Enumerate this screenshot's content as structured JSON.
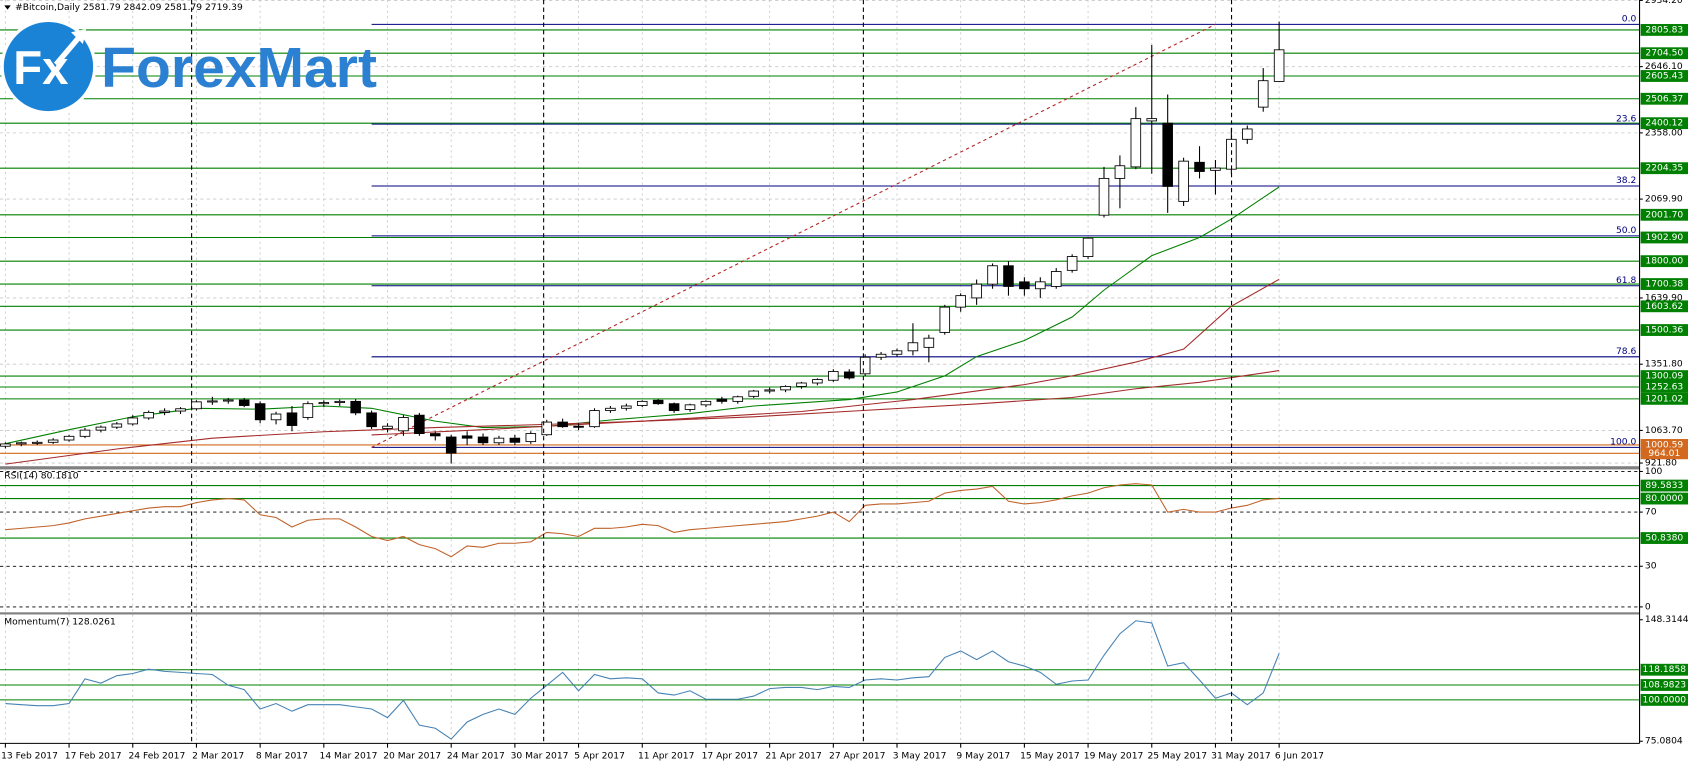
{
  "logo": {
    "icon": "Fx",
    "text": "ForexMart"
  },
  "chart_data": [
    {
      "type": "candlestick",
      "title": "#Bitcoin,Daily  2581.79 2842.09 2581.79 2719.39",
      "categories": [
        "13 Feb 2017",
        null,
        null,
        null,
        "17 Feb 2017",
        null,
        null,
        null,
        "24 Feb 2017",
        null,
        null,
        null,
        "2 Mar 2017",
        null,
        null,
        null,
        "8 Mar 2017",
        null,
        null,
        null,
        "14 Mar 2017",
        null,
        null,
        null,
        "20 Mar 2017",
        null,
        null,
        null,
        "24 Mar 2017",
        null,
        null,
        null,
        "30 Mar 2017",
        null,
        null,
        null,
        "5 Apr 2017",
        null,
        null,
        null,
        "11 Apr 2017",
        null,
        null,
        null,
        "17 Apr 2017",
        null,
        null,
        null,
        "21 Apr 2017",
        null,
        null,
        null,
        "27 Apr 2017",
        null,
        null,
        null,
        "3 May 2017",
        null,
        null,
        null,
        "9 May 2017",
        null,
        null,
        null,
        "15 May 2017",
        null,
        null,
        null,
        "19 May 2017",
        null,
        null,
        null,
        "25 May 2017",
        null,
        null,
        null,
        "31 May 2017",
        null,
        null,
        null,
        "6 Jun 2017"
      ],
      "open": [
        995,
        1005,
        1010,
        1012,
        1022,
        1038,
        1065,
        1078,
        1092,
        1118,
        1142,
        1148,
        1158,
        1188,
        1192,
        1196,
        1180,
        1110,
        1140,
        1120,
        1180,
        1185,
        1190,
        1140,
        1072,
        1062,
        1130,
        1050,
        1035,
        1040,
        1035,
        1010,
        1030,
        1015,
        1045,
        1100,
        1082,
        1080,
        1150,
        1160,
        1172,
        1195,
        1180,
        1155,
        1175,
        1200,
        1190,
        1212,
        1235,
        1240,
        1255,
        1270,
        1282,
        1318,
        1310,
        1382,
        1395,
        1410,
        1425,
        1490,
        1600,
        1640,
        1700,
        1780,
        1710,
        1680,
        1690,
        1760,
        1820,
        2000,
        2160,
        2210,
        2410,
        2400,
        2060,
        2230,
        2195,
        2200,
        2330,
        2470,
        2581.79
      ],
      "high": [
        1012,
        1015,
        1020,
        1030,
        1045,
        1075,
        1085,
        1100,
        1130,
        1150,
        1160,
        1165,
        1195,
        1210,
        1205,
        1205,
        1190,
        1145,
        1170,
        1190,
        1195,
        1198,
        1200,
        1150,
        1095,
        1130,
        1140,
        1060,
        1045,
        1060,
        1050,
        1040,
        1045,
        1060,
        1110,
        1115,
        1095,
        1160,
        1170,
        1180,
        1195,
        1200,
        1185,
        1180,
        1195,
        1210,
        1215,
        1240,
        1250,
        1260,
        1275,
        1290,
        1330,
        1330,
        1395,
        1405,
        1420,
        1530,
        1480,
        1610,
        1660,
        1720,
        1790,
        1800,
        1730,
        1730,
        1770,
        1830,
        1905,
        2210,
        2260,
        2470,
        2740,
        2525,
        2250,
        2300,
        2240,
        2380,
        2390,
        2640,
        2842.09
      ],
      "low": [
        985,
        995,
        1000,
        1005,
        1015,
        1030,
        1055,
        1070,
        1085,
        1110,
        1130,
        1135,
        1150,
        1175,
        1180,
        1165,
        1095,
        1090,
        1060,
        1110,
        1165,
        1170,
        1130,
        1070,
        1055,
        1040,
        1040,
        1020,
        920,
        1000,
        1000,
        1000,
        1000,
        1005,
        1040,
        1075,
        1065,
        1075,
        1140,
        1150,
        1165,
        1175,
        1140,
        1145,
        1165,
        1180,
        1180,
        1205,
        1225,
        1230,
        1245,
        1260,
        1275,
        1285,
        1300,
        1370,
        1385,
        1390,
        1360,
        1480,
        1580,
        1610,
        1680,
        1650,
        1650,
        1640,
        1680,
        1750,
        1810,
        1990,
        2030,
        2200,
        2180,
        2010,
        2040,
        2160,
        2090,
        2180,
        2310,
        2450,
        2581.79
      ],
      "close": [
        1005,
        1010,
        1012,
        1022,
        1038,
        1065,
        1078,
        1092,
        1118,
        1142,
        1148,
        1158,
        1188,
        1192,
        1196,
        1172,
        1110,
        1135,
        1085,
        1180,
        1185,
        1190,
        1140,
        1080,
        1082,
        1120,
        1050,
        1040,
        965,
        1030,
        1010,
        1030,
        1012,
        1050,
        1100,
        1080,
        1078,
        1150,
        1160,
        1170,
        1190,
        1180,
        1150,
        1175,
        1190,
        1190,
        1210,
        1235,
        1240,
        1255,
        1270,
        1285,
        1320,
        1292,
        1382,
        1395,
        1410,
        1445,
        1465,
        1600,
        1650,
        1700,
        1780,
        1690,
        1680,
        1710,
        1755,
        1820,
        1900,
        2160,
        2215,
        2420,
        2420,
        2125,
        2235,
        2190,
        2205,
        2330,
        2375,
        2585,
        2719.39
      ],
      "up_color": "#ffffff",
      "down_color": "#000000",
      "ylim": [
        908,
        2936
      ],
      "yticks": [
        {
          "value": 2934.2,
          "label": "2934.20"
        },
        {
          "value": 2646.1,
          "label": "2646.10"
        },
        {
          "value": 2358,
          "label": "2358.00"
        },
        {
          "value": 2069.9,
          "label": "2069.90"
        },
        {
          "value": 1639.9,
          "label": "1639.90"
        },
        {
          "value": 1351.8,
          "label": "1351.80"
        },
        {
          "value": 1063.7,
          "label": "1063.70"
        },
        {
          "value": 921.8,
          "label": "921.80"
        }
      ],
      "grid": true,
      "grid_color": "#c8c8c8",
      "overlays": [
        {
          "color": "#008000",
          "x": [
            0,
            4,
            8,
            12,
            16,
            20,
            23,
            27,
            30,
            34,
            38,
            43,
            47,
            53,
            56,
            59,
            61,
            64,
            67,
            69,
            72,
            75,
            77,
            80
          ],
          "values": [
            1006,
            1067,
            1123,
            1160,
            1156,
            1170,
            1160,
            1104,
            1076,
            1081,
            1109,
            1137,
            1170,
            1198,
            1231,
            1301,
            1385,
            1455,
            1557,
            1674,
            1824,
            1903,
            1983,
            2123
          ]
        },
        {
          "color": "#a52a2a",
          "x": [
            0,
            7,
            13,
            20,
            27,
            34,
            40,
            47,
            54,
            61,
            67,
            71,
            75,
            80
          ],
          "values": [
            917,
            983,
            1030,
            1058,
            1076,
            1090,
            1104,
            1123,
            1151,
            1179,
            1207,
            1245,
            1273,
            1324
          ]
        },
        {
          "color": "#a52a2a",
          "x": [
            23,
            30,
            40,
            50,
            57,
            64,
            67,
            71,
            74,
            77,
            80
          ],
          "values": [
            1044,
            1067,
            1104,
            1146,
            1198,
            1263,
            1301,
            1361,
            1417,
            1604,
            1721
          ]
        }
      ],
      "trendline": {
        "color": "#b22222",
        "x": [
          23,
          76
        ],
        "values": [
          990,
          2830
        ]
      },
      "fibonacci": {
        "color": "#000080",
        "x": [
          23,
          80
        ],
        "levels": [
          {
            "label": "0.0",
            "price": 2830
          },
          {
            "label": "23.6",
            "price": 2396
          },
          {
            "label": "38.2",
            "price": 2127
          },
          {
            "label": "50.0",
            "price": 1910
          },
          {
            "label": "61.8",
            "price": 1693
          },
          {
            "label": "78.6",
            "price": 1384
          },
          {
            "label": "100.0",
            "price": 990
          }
        ]
      },
      "levels": [
        {
          "value": 2805.83,
          "color": "#008000"
        },
        {
          "value": 2704.5,
          "label": "2704.50",
          "color": "#008000"
        },
        {
          "value": 2605.43,
          "color": "#008000"
        },
        {
          "value": 2506.37,
          "color": "#008000"
        },
        {
          "value": 2400.12,
          "color": "#008000"
        },
        {
          "value": 2204.35,
          "color": "#008000"
        },
        {
          "value": 2001.7,
          "label": "2001.70",
          "color": "#008000"
        },
        {
          "value": 1902.9,
          "label": "1902.90",
          "color": "#008000"
        },
        {
          "value": 1800,
          "label": "1800.00",
          "color": "#008000"
        },
        {
          "value": 1700.38,
          "color": "#008000"
        },
        {
          "value": 1603.62,
          "color": "#008000"
        },
        {
          "value": 1500.36,
          "color": "#008000"
        },
        {
          "value": 1300.09,
          "color": "#008000"
        },
        {
          "value": 1252.63,
          "color": "#008000"
        },
        {
          "value": 1201.02,
          "color": "#008000"
        },
        {
          "value": 1000.59,
          "color": "#d2691e"
        },
        {
          "value": 964.01,
          "color": "#d2691e"
        }
      ]
    },
    {
      "type": "line",
      "title": "RSI(14) 80.1810",
      "color": "#c0622a",
      "values": [
        57,
        58,
        59,
        60,
        62,
        65,
        67,
        69,
        71,
        73,
        74,
        74,
        77,
        79,
        80,
        79,
        68,
        66,
        59,
        64,
        65,
        65,
        59,
        52,
        49,
        52,
        46,
        43,
        37,
        45,
        44,
        47,
        47,
        48,
        55,
        54,
        52,
        58,
        58,
        59,
        61,
        60,
        55,
        57,
        58,
        59,
        60,
        61,
        62,
        63,
        65,
        67,
        70,
        63,
        75,
        76,
        76,
        77,
        78,
        84,
        86,
        87,
        89,
        78,
        76,
        77,
        79,
        82,
        84,
        88,
        90,
        91,
        90,
        70,
        72,
        70,
        70,
        73,
        75,
        79,
        80.181
      ],
      "ylim": [
        -4,
        101.5
      ],
      "yticks": [
        100,
        70,
        30,
        0
      ],
      "grid": true,
      "grid_color": "#000000",
      "levels": [
        {
          "value": 89.5833,
          "color": "#008000"
        },
        {
          "value": 80,
          "label": "80.0000",
          "color": "#008000"
        },
        {
          "value": 50.838,
          "label": "50.8380",
          "color": "#008000"
        }
      ]
    },
    {
      "type": "line",
      "title": "Momentum(7) 128.0261",
      "color": "#4682b4",
      "values": [
        97.8,
        97.1,
        96.5,
        96.5,
        97.8,
        112.7,
        110.1,
        114.6,
        115.9,
        118.5,
        117.2,
        116.6,
        115.9,
        115.3,
        108.8,
        106.2,
        94.5,
        97.8,
        93.2,
        97.1,
        97.1,
        97.1,
        95.8,
        94.5,
        89.3,
        99.7,
        84.8,
        82.9,
        76.4,
        86.7,
        91.3,
        94.5,
        91.3,
        101,
        108.8,
        116.6,
        105.5,
        115.3,
        112.7,
        113.3,
        112.7,
        104.2,
        102.9,
        105.5,
        100.4,
        100.4,
        100.4,
        102.3,
        106.8,
        107.5,
        107.5,
        106.2,
        108.1,
        107.5,
        112,
        112.7,
        112,
        113.3,
        114,
        125.6,
        129.5,
        124.3,
        129.5,
        123,
        120.4,
        116.6,
        109.4,
        111.4,
        112,
        126.9,
        139.9,
        147.7,
        146.4,
        120.4,
        122.4,
        112,
        101,
        104.2,
        97.1,
        104.2,
        128.0261
      ],
      "ylim": [
        73.8,
        151.5
      ],
      "yticks": [
        148.3144,
        75.0804
      ],
      "grid": false,
      "levels": [
        {
          "value": 118.1858,
          "color": "#008000"
        },
        {
          "value": 108.9823,
          "color": "#008000"
        },
        {
          "value": 100,
          "label": "100.0000",
          "color": "#008000"
        }
      ]
    }
  ]
}
